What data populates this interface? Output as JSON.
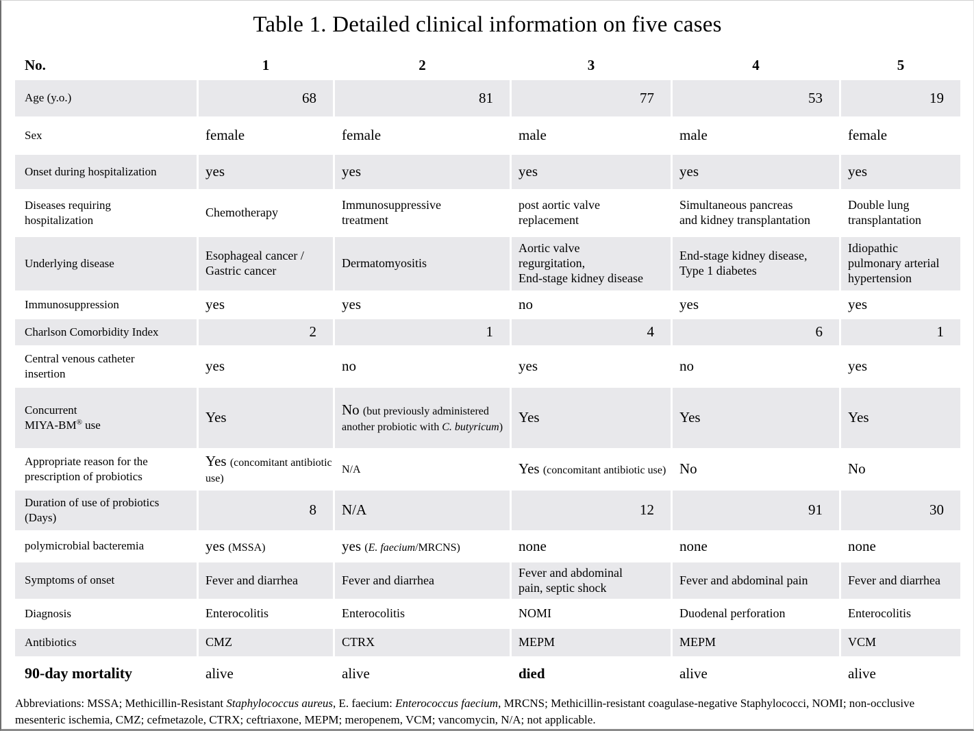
{
  "title": "Table 1. Detailed clinical information on five cases",
  "table": {
    "header": {
      "label": "No.",
      "columns": [
        "1",
        "2",
        "3",
        "4",
        "5"
      ]
    },
    "rows": [
      {
        "id": "age",
        "label": "Age (y.o.)",
        "shade": true,
        "cells": [
          {
            "align": "right",
            "segs": [
              [
                "68",
                "lg"
              ]
            ]
          },
          {
            "align": "right",
            "segs": [
              [
                "81",
                "lg"
              ]
            ]
          },
          {
            "align": "right",
            "segs": [
              [
                "77",
                "lg"
              ]
            ]
          },
          {
            "align": "right",
            "segs": [
              [
                "53",
                "lg"
              ]
            ]
          },
          {
            "align": "right",
            "segs": [
              [
                "19",
                "lg"
              ]
            ]
          }
        ]
      },
      {
        "id": "sex",
        "label": "Sex",
        "shade": false,
        "cells": [
          {
            "segs": [
              [
                "female",
                "lg"
              ]
            ]
          },
          {
            "segs": [
              [
                "female",
                "lg"
              ]
            ]
          },
          {
            "segs": [
              [
                "male",
                "lg"
              ]
            ]
          },
          {
            "segs": [
              [
                "male",
                "lg"
              ]
            ]
          },
          {
            "segs": [
              [
                "female",
                "lg"
              ]
            ]
          }
        ]
      },
      {
        "id": "onset",
        "label": "Onset during hospitalization",
        "shade": true,
        "cells": [
          {
            "segs": [
              [
                "yes",
                "lg"
              ]
            ]
          },
          {
            "segs": [
              [
                "yes",
                "lg"
              ]
            ]
          },
          {
            "segs": [
              [
                "yes",
                "lg"
              ]
            ]
          },
          {
            "segs": [
              [
                "yes",
                "lg"
              ]
            ]
          },
          {
            "segs": [
              [
                "yes",
                "lg"
              ]
            ]
          }
        ]
      },
      {
        "id": "diseases",
        "label": "Diseases requiring\nhospitalization",
        "shade": false,
        "cells": [
          {
            "segs": [
              [
                "Chemotherapy",
                ""
              ]
            ]
          },
          {
            "segs": [
              [
                "Immunosuppressive\ntreatment",
                ""
              ]
            ]
          },
          {
            "segs": [
              [
                "post aortic valve\nreplacement",
                ""
              ]
            ]
          },
          {
            "segs": [
              [
                "Simultaneous pancreas\nand kidney transplantation",
                ""
              ]
            ]
          },
          {
            "segs": [
              [
                "Double lung\ntransplantation",
                ""
              ]
            ]
          }
        ]
      },
      {
        "id": "underlying",
        "label": "Underlying disease",
        "shade": true,
        "cells": [
          {
            "segs": [
              [
                "Esophageal cancer /\nGastric cancer",
                ""
              ]
            ]
          },
          {
            "segs": [
              [
                "Dermatomyositis",
                ""
              ]
            ]
          },
          {
            "segs": [
              [
                "Aortic valve\nregurgitation,\nEnd-stage kidney disease",
                ""
              ]
            ]
          },
          {
            "segs": [
              [
                "End-stage kidney disease,\nType 1 diabetes",
                ""
              ]
            ]
          },
          {
            "segs": [
              [
                "Idiopathic\npulmonary arterial\nhypertension",
                ""
              ]
            ]
          }
        ]
      },
      {
        "id": "immunosuppression",
        "label": "Immunosuppression",
        "shade": false,
        "cells": [
          {
            "segs": [
              [
                "yes",
                "lg"
              ]
            ]
          },
          {
            "segs": [
              [
                "yes",
                "lg"
              ]
            ]
          },
          {
            "segs": [
              [
                "no",
                "lg"
              ]
            ]
          },
          {
            "segs": [
              [
                "yes",
                "lg"
              ]
            ]
          },
          {
            "segs": [
              [
                "yes",
                "lg"
              ]
            ]
          }
        ]
      },
      {
        "id": "charlson",
        "label": "Charlson Comorbidity Index",
        "shade": true,
        "cells": [
          {
            "align": "right",
            "segs": [
              [
                "2",
                "lg"
              ]
            ]
          },
          {
            "align": "right",
            "segs": [
              [
                "1",
                "lg"
              ]
            ]
          },
          {
            "align": "right",
            "segs": [
              [
                "4",
                "lg"
              ]
            ]
          },
          {
            "align": "right",
            "segs": [
              [
                "6",
                "lg"
              ]
            ]
          },
          {
            "align": "right",
            "segs": [
              [
                "1",
                "lg"
              ]
            ]
          }
        ]
      },
      {
        "id": "cvc",
        "label": "Central venous catheter\ninsertion",
        "shade": false,
        "cells": [
          {
            "segs": [
              [
                "yes",
                "lg"
              ]
            ]
          },
          {
            "segs": [
              [
                "no",
                "lg"
              ]
            ]
          },
          {
            "segs": [
              [
                "yes",
                "lg"
              ]
            ]
          },
          {
            "segs": [
              [
                "no",
                "lg"
              ]
            ]
          },
          {
            "segs": [
              [
                "yes",
                "lg"
              ]
            ]
          }
        ]
      },
      {
        "id": "miyabm",
        "label": "Concurrent\nMIYA-BM® use",
        "shade": true,
        "cells": [
          {
            "segs": [
              [
                "Yes",
                "lg"
              ]
            ]
          },
          {
            "segs": [
              [
                "No ",
                "lg"
              ],
              [
                "(but previously administered another probiotic with ",
                "sm"
              ],
              [
                "C. butyricum",
                "sm i"
              ],
              [
                ")",
                "sm"
              ]
            ]
          },
          {
            "segs": [
              [
                "Yes",
                "lg"
              ]
            ]
          },
          {
            "segs": [
              [
                "Yes",
                "lg"
              ]
            ]
          },
          {
            "segs": [
              [
                "Yes",
                "lg"
              ]
            ]
          }
        ]
      },
      {
        "id": "appropriate",
        "label": "Appropriate reason for the\nprescription of probiotics",
        "shade": false,
        "cells": [
          {
            "segs": [
              [
                "Yes ",
                "lg"
              ],
              [
                "(concomitant antibiotic use)",
                "sm"
              ]
            ]
          },
          {
            "segs": [
              [
                "N/A",
                "sm"
              ]
            ]
          },
          {
            "segs": [
              [
                "Yes ",
                "lg"
              ],
              [
                "(concomitant antibiotic use)",
                "sm"
              ]
            ]
          },
          {
            "segs": [
              [
                "No",
                "lg"
              ]
            ]
          },
          {
            "segs": [
              [
                "No",
                "lg"
              ]
            ]
          }
        ]
      },
      {
        "id": "duration",
        "label": "Duration of use of probiotics\n(Days)",
        "shade": true,
        "cells": [
          {
            "align": "right",
            "segs": [
              [
                "8",
                "lg"
              ]
            ]
          },
          {
            "segs": [
              [
                "N/A",
                "lg"
              ]
            ]
          },
          {
            "align": "right",
            "segs": [
              [
                "12",
                "lg"
              ]
            ]
          },
          {
            "align": "right",
            "segs": [
              [
                "91",
                "lg"
              ]
            ]
          },
          {
            "align": "right",
            "segs": [
              [
                "30",
                "lg"
              ]
            ]
          }
        ]
      },
      {
        "id": "polymicrobial",
        "label": "polymicrobial bacteremia",
        "shade": false,
        "cells": [
          {
            "segs": [
              [
                "yes ",
                "lg"
              ],
              [
                "(MSSA)",
                "sm"
              ]
            ]
          },
          {
            "segs": [
              [
                "yes ",
                "lg"
              ],
              [
                "(",
                "sm"
              ],
              [
                "E. faecium",
                "sm i"
              ],
              [
                "/MRCNS)",
                "sm"
              ]
            ]
          },
          {
            "segs": [
              [
                "none",
                "lg"
              ]
            ]
          },
          {
            "segs": [
              [
                "none",
                "lg"
              ]
            ]
          },
          {
            "segs": [
              [
                "none",
                "lg"
              ]
            ]
          }
        ]
      },
      {
        "id": "symptoms",
        "label": "Symptoms of onset",
        "shade": true,
        "cells": [
          {
            "segs": [
              [
                "Fever and diarrhea",
                ""
              ]
            ]
          },
          {
            "segs": [
              [
                "Fever and diarrhea",
                ""
              ]
            ]
          },
          {
            "segs": [
              [
                "Fever and abdominal\npain, septic shock",
                ""
              ]
            ]
          },
          {
            "segs": [
              [
                "Fever and abdominal pain",
                ""
              ]
            ]
          },
          {
            "segs": [
              [
                "Fever and diarrhea",
                ""
              ]
            ]
          }
        ]
      },
      {
        "id": "diagnosis",
        "label": "Diagnosis",
        "shade": false,
        "cells": [
          {
            "segs": [
              [
                "Enterocolitis",
                ""
              ]
            ]
          },
          {
            "segs": [
              [
                "Enterocolitis",
                ""
              ]
            ]
          },
          {
            "segs": [
              [
                "NOMI",
                ""
              ]
            ]
          },
          {
            "segs": [
              [
                "Duodenal perforation",
                ""
              ]
            ]
          },
          {
            "segs": [
              [
                "Enterocolitis",
                ""
              ]
            ]
          }
        ]
      },
      {
        "id": "antibiotics",
        "label": "Antibiotics",
        "shade": true,
        "cells": [
          {
            "segs": [
              [
                "CMZ",
                ""
              ]
            ]
          },
          {
            "segs": [
              [
                "CTRX",
                ""
              ]
            ]
          },
          {
            "segs": [
              [
                "MEPM",
                ""
              ]
            ]
          },
          {
            "segs": [
              [
                "MEPM",
                ""
              ]
            ]
          },
          {
            "segs": [
              [
                "VCM",
                ""
              ]
            ]
          }
        ]
      },
      {
        "id": "mortality",
        "label": "90-day mortality",
        "shade": false,
        "cells": [
          {
            "segs": [
              [
                "alive",
                "lg"
              ]
            ]
          },
          {
            "segs": [
              [
                "alive",
                "lg"
              ]
            ]
          },
          {
            "segs": [
              [
                "died",
                "lg b"
              ]
            ]
          },
          {
            "segs": [
              [
                "alive",
                "lg"
              ]
            ]
          },
          {
            "segs": [
              [
                "alive",
                "lg"
              ]
            ]
          }
        ]
      }
    ]
  },
  "footer": {
    "segments": [
      [
        "Abbreviations:  MSSA; Methicillin-Resistant ",
        ""
      ],
      [
        "Staphylococcus aureus",
        "i"
      ],
      [
        ", E. faecium: ",
        ""
      ],
      [
        "Enterococcus faecium",
        "i"
      ],
      [
        ", MRCNS; Methicillin-resistant coagulase-negative Staphylococci, NOMI; non-occlusive mesenteric ischemia, CMZ; cefmetazole, CTRX; ceftriaxone, MEPM; meropenem, VCM; vancomycin, N/A; not applicable.",
        ""
      ]
    ]
  }
}
